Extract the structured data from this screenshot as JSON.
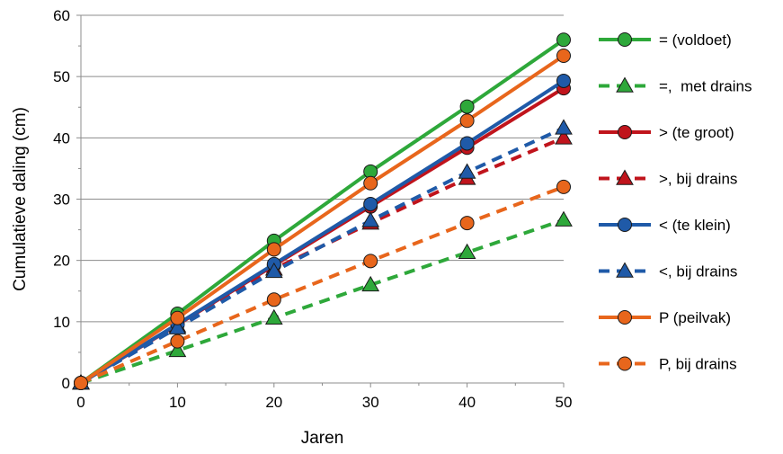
{
  "chart_data": {
    "type": "line",
    "title": "",
    "xlabel": "Jaren",
    "ylabel": "Cumulatieve daling (cm)",
    "x": [
      0,
      10,
      20,
      30,
      40,
      50
    ],
    "xlim": [
      0,
      50
    ],
    "ylim": [
      0,
      60
    ],
    "xticks": [
      0,
      10,
      20,
      30,
      40,
      50
    ],
    "yticks": [
      0,
      10,
      20,
      30,
      40,
      50,
      60
    ],
    "grid": "horizontal",
    "legend_position": "right",
    "series": [
      {
        "name": "= (voldoet)",
        "color": "#2ea83a",
        "dash": "solid",
        "marker": "circle",
        "values": [
          0,
          11.3,
          23.2,
          34.5,
          45.1,
          56.0
        ]
      },
      {
        "name": "=,  met drains",
        "color": "#2ea83a",
        "dash": "dashed",
        "marker": "triangle",
        "values": [
          0,
          5.3,
          10.6,
          16.0,
          21.3,
          26.6
        ]
      },
      {
        "name": "> (te groot)",
        "color": "#c0141c",
        "dash": "solid",
        "marker": "circle",
        "values": [
          0,
          9.5,
          19.2,
          28.8,
          38.4,
          48.1
        ]
      },
      {
        "name": ">, bij drains",
        "color": "#c0141c",
        "dash": "dashed",
        "marker": "triangle",
        "values": [
          0,
          9.3,
          18.6,
          26.1,
          33.4,
          40.0
        ]
      },
      {
        "name": "< (te klein)",
        "color": "#1f5aa8",
        "dash": "solid",
        "marker": "circle",
        "values": [
          0,
          9.6,
          19.4,
          29.2,
          39.1,
          49.3
        ]
      },
      {
        "name": "<, bij drains",
        "color": "#1f5aa8",
        "dash": "dashed",
        "marker": "triangle",
        "values": [
          0,
          9.0,
          18.2,
          26.5,
          34.4,
          41.6
        ]
      },
      {
        "name": "P (peilvak)",
        "color": "#e8661c",
        "dash": "solid",
        "marker": "circle",
        "values": [
          0,
          10.6,
          21.8,
          32.6,
          42.8,
          53.4
        ]
      },
      {
        "name": "P, bij drains",
        "color": "#e8661c",
        "dash": "dashed",
        "marker": "circle",
        "values": [
          0,
          6.8,
          13.6,
          19.9,
          26.1,
          32.0
        ]
      }
    ]
  }
}
